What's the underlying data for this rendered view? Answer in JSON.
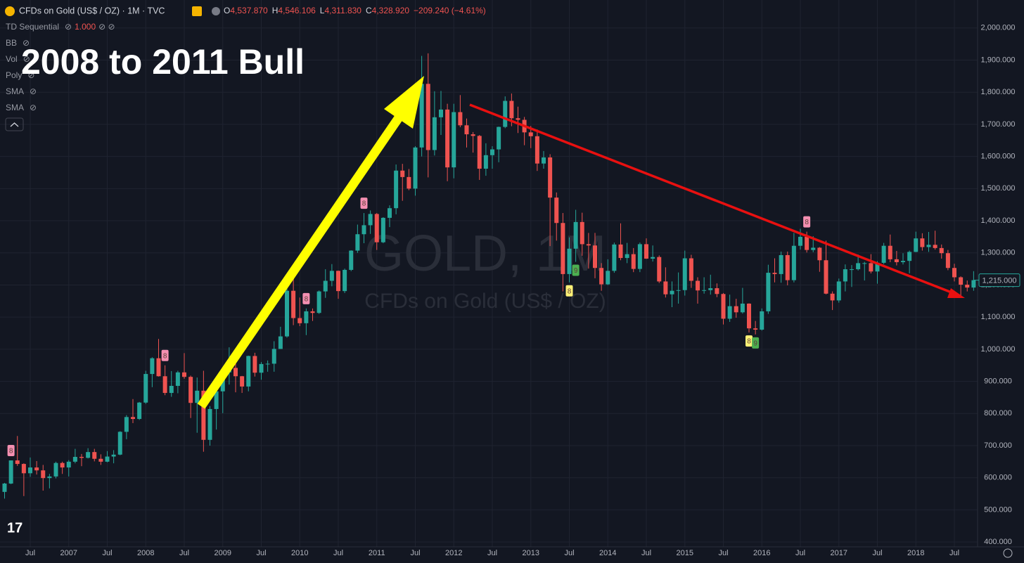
{
  "chart_data": {
    "type": "candlestick",
    "title": "CFDs on Gold (US$ / OZ) · 1M · TVC",
    "header_ohlc": [
      {
        "key": "O",
        "value": "4,537.870"
      },
      {
        "key": "H",
        "value": "4,546.106"
      },
      {
        "key": "L",
        "value": "4,311.830"
      },
      {
        "key": "C",
        "value": "4,328.920"
      }
    ],
    "header_change": "−209.240 (−4.61%)",
    "indicators": [
      {
        "name": "TD Sequential",
        "param": "1.000"
      },
      {
        "name": "BB"
      },
      {
        "name": "Vol"
      },
      {
        "name": "Poly"
      },
      {
        "name": "SMA"
      },
      {
        "name": "SMA"
      }
    ],
    "watermark": "GOLD, 1M",
    "watermark_subtitle": "CFDs on Gold (US$ / OZ)",
    "annotation": "2008 to 2011 Bull",
    "up_color": "#26a69a",
    "down_color": "#ef5350",
    "grid": true,
    "ylim": [
      385,
      2087
    ],
    "yticks": [
      {
        "value": 400,
        "label": "400.000"
      },
      {
        "value": 500,
        "label": "500.000"
      },
      {
        "value": 600,
        "label": "600.000"
      },
      {
        "value": 700,
        "label": "700.000"
      },
      {
        "value": 800,
        "label": "800.000"
      },
      {
        "value": 900,
        "label": "900.000"
      },
      {
        "value": 1000,
        "label": "1,000.000"
      },
      {
        "value": 1100,
        "label": "1,100.000"
      },
      {
        "value": 1200,
        "label": "1,200.000"
      },
      {
        "value": 1300,
        "label": "1,300.000"
      },
      {
        "value": 1400,
        "label": "1,400.000"
      },
      {
        "value": 1500,
        "label": "1,500.000"
      },
      {
        "value": 1600,
        "label": "1,600.000"
      },
      {
        "value": 1700,
        "label": "1,700.000"
      },
      {
        "value": 1800,
        "label": "1,800.000"
      },
      {
        "value": 1900,
        "label": "1,900.000"
      },
      {
        "value": 2000,
        "label": "2,000.000"
      }
    ],
    "xticks": [
      {
        "value": "2006-07",
        "label": "Jul"
      },
      {
        "value": "2007-01",
        "label": "2007"
      },
      {
        "value": "2007-07",
        "label": "Jul"
      },
      {
        "value": "2008-01",
        "label": "2008"
      },
      {
        "value": "2008-07",
        "label": "Jul"
      },
      {
        "value": "2009-01",
        "label": "2009"
      },
      {
        "value": "2009-07",
        "label": "Jul"
      },
      {
        "value": "2010-01",
        "label": "2010"
      },
      {
        "value": "2010-07",
        "label": "Jul"
      },
      {
        "value": "2011-01",
        "label": "2011"
      },
      {
        "value": "2011-07",
        "label": "Jul"
      },
      {
        "value": "2012-01",
        "label": "2012"
      },
      {
        "value": "2012-07",
        "label": "Jul"
      },
      {
        "value": "2013-01",
        "label": "2013"
      },
      {
        "value": "2013-07",
        "label": "Jul"
      },
      {
        "value": "2014-01",
        "label": "2014"
      },
      {
        "value": "2014-07",
        "label": "Jul"
      },
      {
        "value": "2015-01",
        "label": "2015"
      },
      {
        "value": "2015-07",
        "label": "Jul"
      },
      {
        "value": "2016-01",
        "label": "2016"
      },
      {
        "value": "2016-07",
        "label": "Jul"
      },
      {
        "value": "2017-01",
        "label": "2017"
      },
      {
        "value": "2017-07",
        "label": "Jul"
      },
      {
        "value": "2018-01",
        "label": "2018"
      },
      {
        "value": "2018-07",
        "label": "Jul"
      }
    ],
    "last_price": {
      "value": 1215,
      "label": "1,215.000"
    },
    "td_marks": [
      {
        "x": "2006-04",
        "label": "8",
        "color": "#f48fb1",
        "side": "above"
      },
      {
        "x": "2008-04",
        "label": "8",
        "color": "#f48fb1",
        "side": "above"
      },
      {
        "x": "2010-02",
        "label": "8",
        "color": "#f48fb1",
        "side": "above"
      },
      {
        "x": "2010-11",
        "label": "8",
        "color": "#f48fb1",
        "side": "above"
      },
      {
        "x": "2013-07",
        "label": "8",
        "color": "#fff176",
        "side": "below"
      },
      {
        "x": "2013-08",
        "label": "9",
        "color": "#4caf50",
        "side": "below"
      },
      {
        "x": "2015-11",
        "label": "8",
        "color": "#fff176",
        "side": "below"
      },
      {
        "x": "2015-12",
        "label": "9",
        "color": "#4caf50",
        "side": "below"
      },
      {
        "x": "2016-08",
        "label": "8",
        "color": "#f48fb1",
        "side": "above"
      }
    ],
    "x": [
      "2006-03",
      "2006-04",
      "2006-05",
      "2006-06",
      "2006-07",
      "2006-08",
      "2006-09",
      "2006-10",
      "2006-11",
      "2006-12",
      "2007-01",
      "2007-02",
      "2007-03",
      "2007-04",
      "2007-05",
      "2007-06",
      "2007-07",
      "2007-08",
      "2007-09",
      "2007-10",
      "2007-11",
      "2007-12",
      "2008-01",
      "2008-02",
      "2008-03",
      "2008-04",
      "2008-05",
      "2008-06",
      "2008-07",
      "2008-08",
      "2008-09",
      "2008-10",
      "2008-11",
      "2008-12",
      "2009-01",
      "2009-02",
      "2009-03",
      "2009-04",
      "2009-05",
      "2009-06",
      "2009-07",
      "2009-08",
      "2009-09",
      "2009-10",
      "2009-11",
      "2009-12",
      "2010-01",
      "2010-02",
      "2010-03",
      "2010-04",
      "2010-05",
      "2010-06",
      "2010-07",
      "2010-08",
      "2010-09",
      "2010-10",
      "2010-11",
      "2010-12",
      "2011-01",
      "2011-02",
      "2011-03",
      "2011-04",
      "2011-05",
      "2011-06",
      "2011-07",
      "2011-08",
      "2011-09",
      "2011-10",
      "2011-11",
      "2011-12",
      "2012-01",
      "2012-02",
      "2012-03",
      "2012-04",
      "2012-05",
      "2012-06",
      "2012-07",
      "2012-08",
      "2012-09",
      "2012-10",
      "2012-11",
      "2012-12",
      "2013-01",
      "2013-02",
      "2013-03",
      "2013-04",
      "2013-05",
      "2013-06",
      "2013-07",
      "2013-08",
      "2013-09",
      "2013-10",
      "2013-11",
      "2013-12",
      "2014-01",
      "2014-02",
      "2014-03",
      "2014-04",
      "2014-05",
      "2014-06",
      "2014-07",
      "2014-08",
      "2014-09",
      "2014-10",
      "2014-11",
      "2014-12",
      "2015-01",
      "2015-02",
      "2015-03",
      "2015-04",
      "2015-05",
      "2015-06",
      "2015-07",
      "2015-08",
      "2015-09",
      "2015-10",
      "2015-11",
      "2015-12",
      "2016-01",
      "2016-02",
      "2016-03",
      "2016-04",
      "2016-05",
      "2016-06",
      "2016-07",
      "2016-08",
      "2016-09",
      "2016-10",
      "2016-11",
      "2016-12",
      "2017-01",
      "2017-02",
      "2017-03",
      "2017-04",
      "2017-05",
      "2017-06",
      "2017-07",
      "2017-08",
      "2017-09",
      "2017-10",
      "2017-11",
      "2017-12",
      "2018-01",
      "2018-02",
      "2018-03",
      "2018-04",
      "2018-05",
      "2018-06",
      "2018-07",
      "2018-08",
      "2018-09",
      "2018-10"
    ],
    "ohlc": [
      [
        556,
        584,
        535,
        582
      ],
      [
        582,
        654,
        580,
        654
      ],
      [
        654,
        730,
        637,
        643
      ],
      [
        643,
        645,
        543,
        614
      ],
      [
        614,
        663,
        603,
        632
      ],
      [
        632,
        652,
        610,
        623
      ],
      [
        623,
        640,
        560,
        599
      ],
      [
        599,
        612,
        567,
        604
      ],
      [
        604,
        650,
        598,
        646
      ],
      [
        646,
        650,
        612,
        632
      ],
      [
        632,
        655,
        604,
        650
      ],
      [
        650,
        690,
        645,
        665
      ],
      [
        665,
        674,
        636,
        662
      ],
      [
        662,
        692,
        660,
        680
      ],
      [
        680,
        690,
        651,
        659
      ],
      [
        659,
        673,
        640,
        650
      ],
      [
        650,
        683,
        648,
        666
      ],
      [
        666,
        686,
        645,
        672
      ],
      [
        672,
        745,
        670,
        743
      ],
      [
        743,
        795,
        720,
        789
      ],
      [
        789,
        845,
        770,
        783
      ],
      [
        783,
        836,
        780,
        834
      ],
      [
        834,
        933,
        830,
        923
      ],
      [
        923,
        975,
        882,
        972
      ],
      [
        972,
        1032,
        915,
        916
      ],
      [
        916,
        950,
        857,
        864
      ],
      [
        864,
        932,
        852,
        886
      ],
      [
        886,
        933,
        863,
        928
      ],
      [
        928,
        988,
        908,
        914
      ],
      [
        914,
        918,
        786,
        833
      ],
      [
        833,
        912,
        740,
        871
      ],
      [
        871,
        933,
        681,
        718
      ],
      [
        718,
        823,
        700,
        814
      ],
      [
        814,
        888,
        750,
        869
      ],
      [
        869,
        932,
        801,
        928
      ],
      [
        928,
        1006,
        890,
        942
      ],
      [
        942,
        958,
        866,
        916
      ],
      [
        916,
        917,
        864,
        884
      ],
      [
        884,
        980,
        869,
        979
      ],
      [
        979,
        989,
        915,
        927
      ],
      [
        927,
        960,
        905,
        954
      ],
      [
        954,
        965,
        930,
        955
      ],
      [
        955,
        1025,
        930,
        1001
      ],
      [
        1001,
        1070,
        1001,
        1040
      ],
      [
        1040,
        1195,
        1036,
        1182
      ],
      [
        1182,
        1227,
        1075,
        1097
      ],
      [
        1097,
        1161,
        1072,
        1081
      ],
      [
        1081,
        1127,
        1044,
        1118
      ],
      [
        1118,
        1127,
        1088,
        1113
      ],
      [
        1113,
        1183,
        1110,
        1180
      ],
      [
        1180,
        1249,
        1160,
        1213
      ],
      [
        1213,
        1265,
        1196,
        1244
      ],
      [
        1244,
        1245,
        1157,
        1181
      ],
      [
        1181,
        1251,
        1175,
        1247
      ],
      [
        1247,
        1308,
        1243,
        1307
      ],
      [
        1307,
        1388,
        1300,
        1358
      ],
      [
        1358,
        1424,
        1330,
        1386
      ],
      [
        1386,
        1432,
        1359,
        1421
      ],
      [
        1421,
        1424,
        1309,
        1333
      ],
      [
        1333,
        1411,
        1330,
        1409
      ],
      [
        1409,
        1448,
        1380,
        1439
      ],
      [
        1439,
        1575,
        1420,
        1556
      ],
      [
        1556,
        1577,
        1462,
        1536
      ],
      [
        1536,
        1561,
        1495,
        1500
      ],
      [
        1500,
        1632,
        1478,
        1628
      ],
      [
        1628,
        1913,
        1600,
        1826
      ],
      [
        1826,
        1921,
        1535,
        1620
      ],
      [
        1620,
        1803,
        1603,
        1722
      ],
      [
        1722,
        1804,
        1667,
        1746
      ],
      [
        1746,
        1764,
        1523,
        1566
      ],
      [
        1566,
        1764,
        1532,
        1738
      ],
      [
        1738,
        1791,
        1691,
        1697
      ],
      [
        1697,
        1718,
        1628,
        1669
      ],
      [
        1669,
        1676,
        1612,
        1664
      ],
      [
        1664,
        1667,
        1527,
        1562
      ],
      [
        1562,
        1641,
        1540,
        1604
      ],
      [
        1604,
        1632,
        1562,
        1622
      ],
      [
        1622,
        1693,
        1582,
        1692
      ],
      [
        1692,
        1787,
        1688,
        1773
      ],
      [
        1773,
        1796,
        1694,
        1719
      ],
      [
        1719,
        1755,
        1673,
        1714
      ],
      [
        1714,
        1723,
        1635,
        1675
      ],
      [
        1675,
        1695,
        1626,
        1663
      ],
      [
        1663,
        1684,
        1555,
        1578
      ],
      [
        1578,
        1617,
        1562,
        1597
      ],
      [
        1597,
        1607,
        1321,
        1472
      ],
      [
        1472,
        1488,
        1338,
        1393
      ],
      [
        1393,
        1424,
        1180,
        1234
      ],
      [
        1234,
        1348,
        1208,
        1313
      ],
      [
        1313,
        1434,
        1272,
        1396
      ],
      [
        1396,
        1425,
        1291,
        1327
      ],
      [
        1327,
        1362,
        1251,
        1323
      ],
      [
        1323,
        1362,
        1221,
        1253
      ],
      [
        1253,
        1268,
        1182,
        1202
      ],
      [
        1202,
        1280,
        1200,
        1244
      ],
      [
        1244,
        1332,
        1238,
        1326
      ],
      [
        1326,
        1392,
        1277,
        1284
      ],
      [
        1284,
        1331,
        1268,
        1296
      ],
      [
        1296,
        1315,
        1240,
        1250
      ],
      [
        1250,
        1332,
        1240,
        1327
      ],
      [
        1327,
        1345,
        1281,
        1282
      ],
      [
        1282,
        1323,
        1273,
        1287
      ],
      [
        1287,
        1292,
        1206,
        1211
      ],
      [
        1211,
        1255,
        1161,
        1171
      ],
      [
        1171,
        1211,
        1131,
        1182
      ],
      [
        1182,
        1239,
        1142,
        1184
      ],
      [
        1184,
        1307,
        1167,
        1283
      ],
      [
        1283,
        1294,
        1191,
        1213
      ],
      [
        1213,
        1224,
        1142,
        1183
      ],
      [
        1183,
        1224,
        1173,
        1184
      ],
      [
        1184,
        1232,
        1170,
        1190
      ],
      [
        1190,
        1205,
        1162,
        1172
      ],
      [
        1172,
        1175,
        1077,
        1095
      ],
      [
        1095,
        1170,
        1085,
        1134
      ],
      [
        1134,
        1157,
        1098,
        1115
      ],
      [
        1115,
        1191,
        1111,
        1142
      ],
      [
        1142,
        1143,
        1052,
        1065
      ],
      [
        1065,
        1088,
        1046,
        1061
      ],
      [
        1061,
        1127,
        1058,
        1118
      ],
      [
        1118,
        1263,
        1110,
        1238
      ],
      [
        1238,
        1283,
        1208,
        1234
      ],
      [
        1234,
        1304,
        1207,
        1293
      ],
      [
        1293,
        1304,
        1199,
        1215
      ],
      [
        1215,
        1362,
        1208,
        1322
      ],
      [
        1322,
        1375,
        1310,
        1350
      ],
      [
        1350,
        1366,
        1301,
        1309
      ],
      [
        1309,
        1352,
        1302,
        1316
      ],
      [
        1316,
        1318,
        1241,
        1277
      ],
      [
        1277,
        1338,
        1171,
        1173
      ],
      [
        1173,
        1180,
        1122,
        1152
      ],
      [
        1152,
        1220,
        1145,
        1211
      ],
      [
        1211,
        1264,
        1180,
        1249
      ],
      [
        1249,
        1262,
        1194,
        1249
      ],
      [
        1249,
        1295,
        1245,
        1268
      ],
      [
        1268,
        1272,
        1214,
        1268
      ],
      [
        1268,
        1296,
        1236,
        1242
      ],
      [
        1242,
        1274,
        1204,
        1269
      ],
      [
        1269,
        1331,
        1265,
        1322
      ],
      [
        1322,
        1357,
        1271,
        1280
      ],
      [
        1280,
        1306,
        1261,
        1271
      ],
      [
        1271,
        1299,
        1264,
        1275
      ],
      [
        1275,
        1307,
        1236,
        1303
      ],
      [
        1303,
        1366,
        1302,
        1345
      ],
      [
        1345,
        1361,
        1307,
        1318
      ],
      [
        1318,
        1365,
        1303,
        1325
      ],
      [
        1325,
        1369,
        1310,
        1315
      ],
      [
        1315,
        1326,
        1282,
        1299
      ],
      [
        1299,
        1309,
        1246,
        1253
      ],
      [
        1253,
        1266,
        1211,
        1224
      ],
      [
        1224,
        1227,
        1160,
        1201
      ],
      [
        1201,
        1214,
        1180,
        1192
      ],
      [
        1192,
        1243,
        1182,
        1215
      ]
    ]
  }
}
